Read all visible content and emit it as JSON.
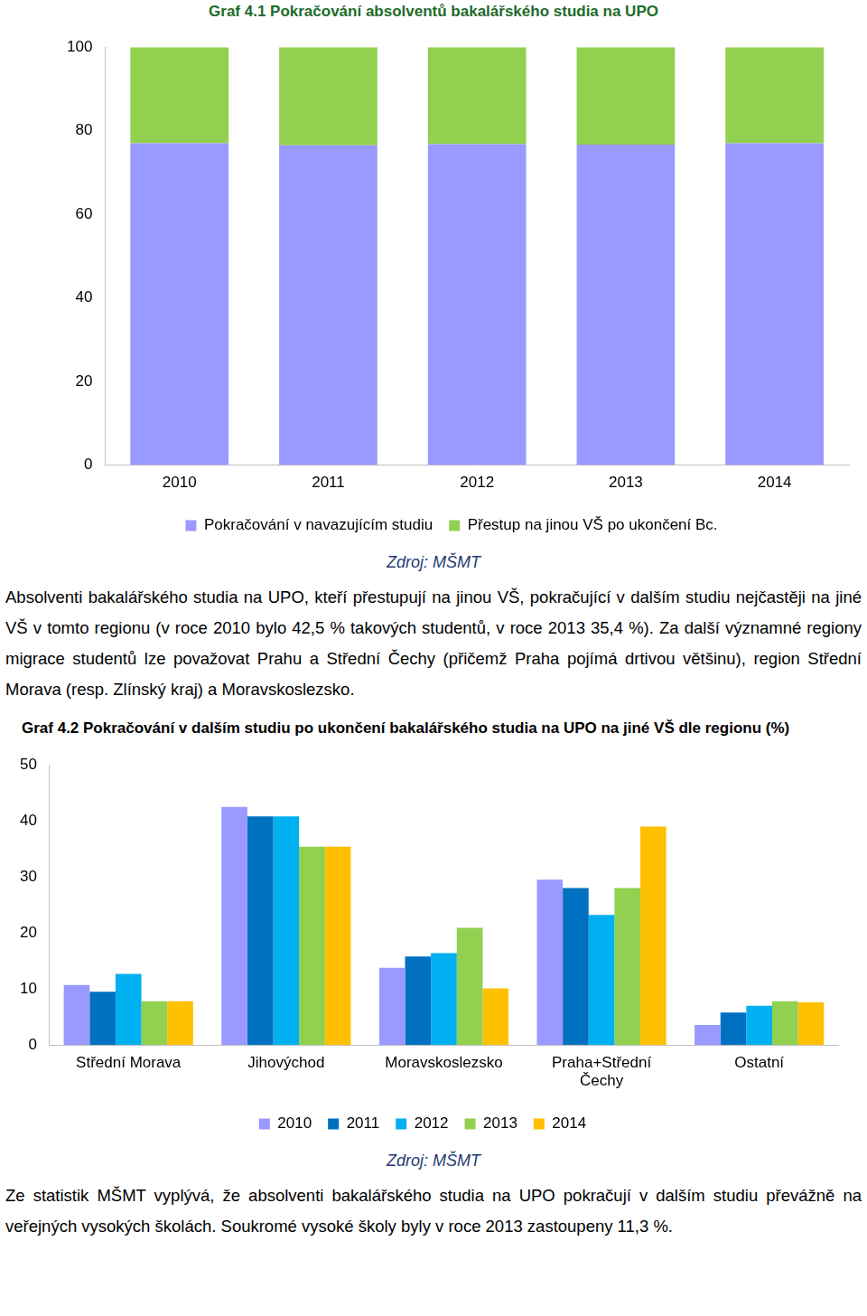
{
  "chart_data": [
    {
      "type": "bar",
      "title": "Graf 4.1 Pokračování absolventů bakalářského studia na UPO",
      "note": "Zdroj: MŠMT",
      "categories": [
        "2010",
        "2011",
        "2012",
        "2013",
        "2014"
      ],
      "series": [
        {
          "name": "Pokračování v navazujícím studiu",
          "color": "#9999ff",
          "values": [
            77.0,
            76.5,
            76.8,
            76.7,
            77.0
          ]
        },
        {
          "name": "Přestup na jinou VŠ po ukončení Bc.",
          "color": "#92d050",
          "values": [
            23.0,
            23.5,
            23.2,
            23.3,
            23.0
          ]
        }
      ],
      "stacked": true,
      "ylim": [
        0,
        100
      ],
      "yticks": [
        0,
        20,
        40,
        60,
        80,
        100
      ],
      "grid": false,
      "legend": "bottom"
    },
    {
      "type": "bar",
      "title": "Graf 4.2 Pokračování v dalším studiu po ukončení bakalářského studia na UPO na jiné VŠ dle regionu (%)",
      "note": "Zdroj: MŠMT",
      "categories": [
        "Střední Morava",
        "Jihovýchod",
        "Moravskoslezsko",
        "Praha+Střední Čechy",
        "Ostatní"
      ],
      "series": [
        {
          "name": "2010",
          "color": "#9999ff",
          "values": [
            10.7,
            42.5,
            13.8,
            29.5,
            3.6
          ]
        },
        {
          "name": "2011",
          "color": "#0070c0",
          "values": [
            9.5,
            40.8,
            15.8,
            28.0,
            5.8
          ]
        },
        {
          "name": "2012",
          "color": "#00b0f0",
          "values": [
            12.7,
            40.8,
            16.4,
            23.2,
            7.0
          ]
        },
        {
          "name": "2013",
          "color": "#92d050",
          "values": [
            7.8,
            35.4,
            20.9,
            28.0,
            7.8
          ]
        },
        {
          "name": "2014",
          "color": "#ffc000",
          "values": [
            7.8,
            35.4,
            10.1,
            39.0,
            7.6
          ]
        }
      ],
      "ylim": [
        0,
        50
      ],
      "yticks": [
        0,
        10,
        20,
        30,
        40,
        50
      ],
      "grid": false,
      "legend": "bottom"
    }
  ],
  "paragraphs": [
    "Absolventi bakalářského studia na UPO, kteří přestupují na jinou VŠ, pokračující v dalším studiu nejčastěji na jiné VŠ v tomto regionu (v roce 2010 bylo 42,5 % takových studentů, v roce 2013 35,4 %). Za další významné regiony migrace studentů lze považovat Prahu a Střední Čechy (přičemž Praha pojímá drtivou většinu), region Střední Morava (resp. Zlínský kraj) a Moravskoslezsko.",
    "Ze statistik MŠMT vyplývá, že absolventi bakalářského studia na UPO pokračují v dalším studiu převážně na veřejných vysokých školách. Soukromé vysoké školy byly v roce 2013 zastoupeny 11,3 %."
  ]
}
